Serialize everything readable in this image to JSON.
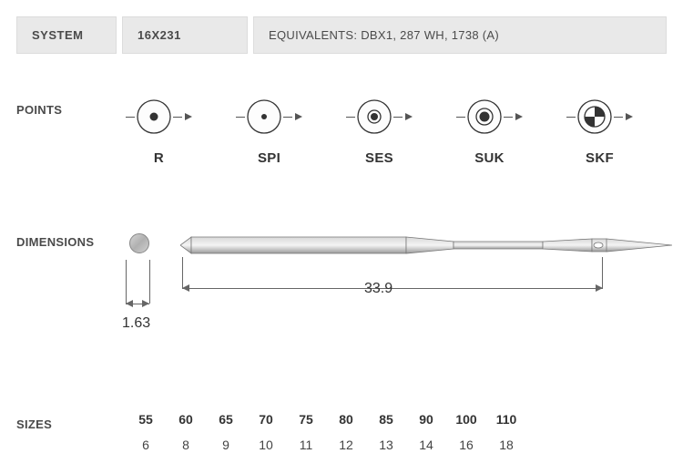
{
  "system": {
    "label": "SYSTEM",
    "model": "16X231",
    "equivalents_label": "EQUIVALENTS:",
    "equivalents": "DBX1, 287 WH, 1738 (A)"
  },
  "points": {
    "label": "POINTS",
    "items": [
      {
        "name": "R",
        "style": "solid-dot",
        "dot_r": 4.5
      },
      {
        "name": "SPI",
        "style": "solid-dot",
        "dot_r": 3.0
      },
      {
        "name": "SES",
        "style": "target",
        "dot_r": 4.0,
        "ring_r": 7.0
      },
      {
        "name": "SUK",
        "style": "target",
        "dot_r": 5.5,
        "ring_r": 9.0
      },
      {
        "name": "SKF",
        "style": "half",
        "ring_r": 11.0
      }
    ],
    "circle_stroke": "#333333",
    "circle_fill": "#fdfdfd",
    "circle_r": 18,
    "inner_fill": "#333333"
  },
  "dimensions": {
    "label": "DIMENSIONS",
    "shank_diameter": "1.63",
    "total_length": "33.9",
    "colors": {
      "metal_light": "#d8d8d8",
      "metal_dark": "#9a9a9a",
      "outline": "#777777"
    }
  },
  "sizes": {
    "label": "SIZES",
    "nm": [
      "55",
      "60",
      "65",
      "70",
      "75",
      "80",
      "85",
      "90",
      "100",
      "110"
    ],
    "singer": [
      "6",
      "8",
      "9",
      "10",
      "11",
      "12",
      "13",
      "14",
      "16",
      "18"
    ]
  }
}
